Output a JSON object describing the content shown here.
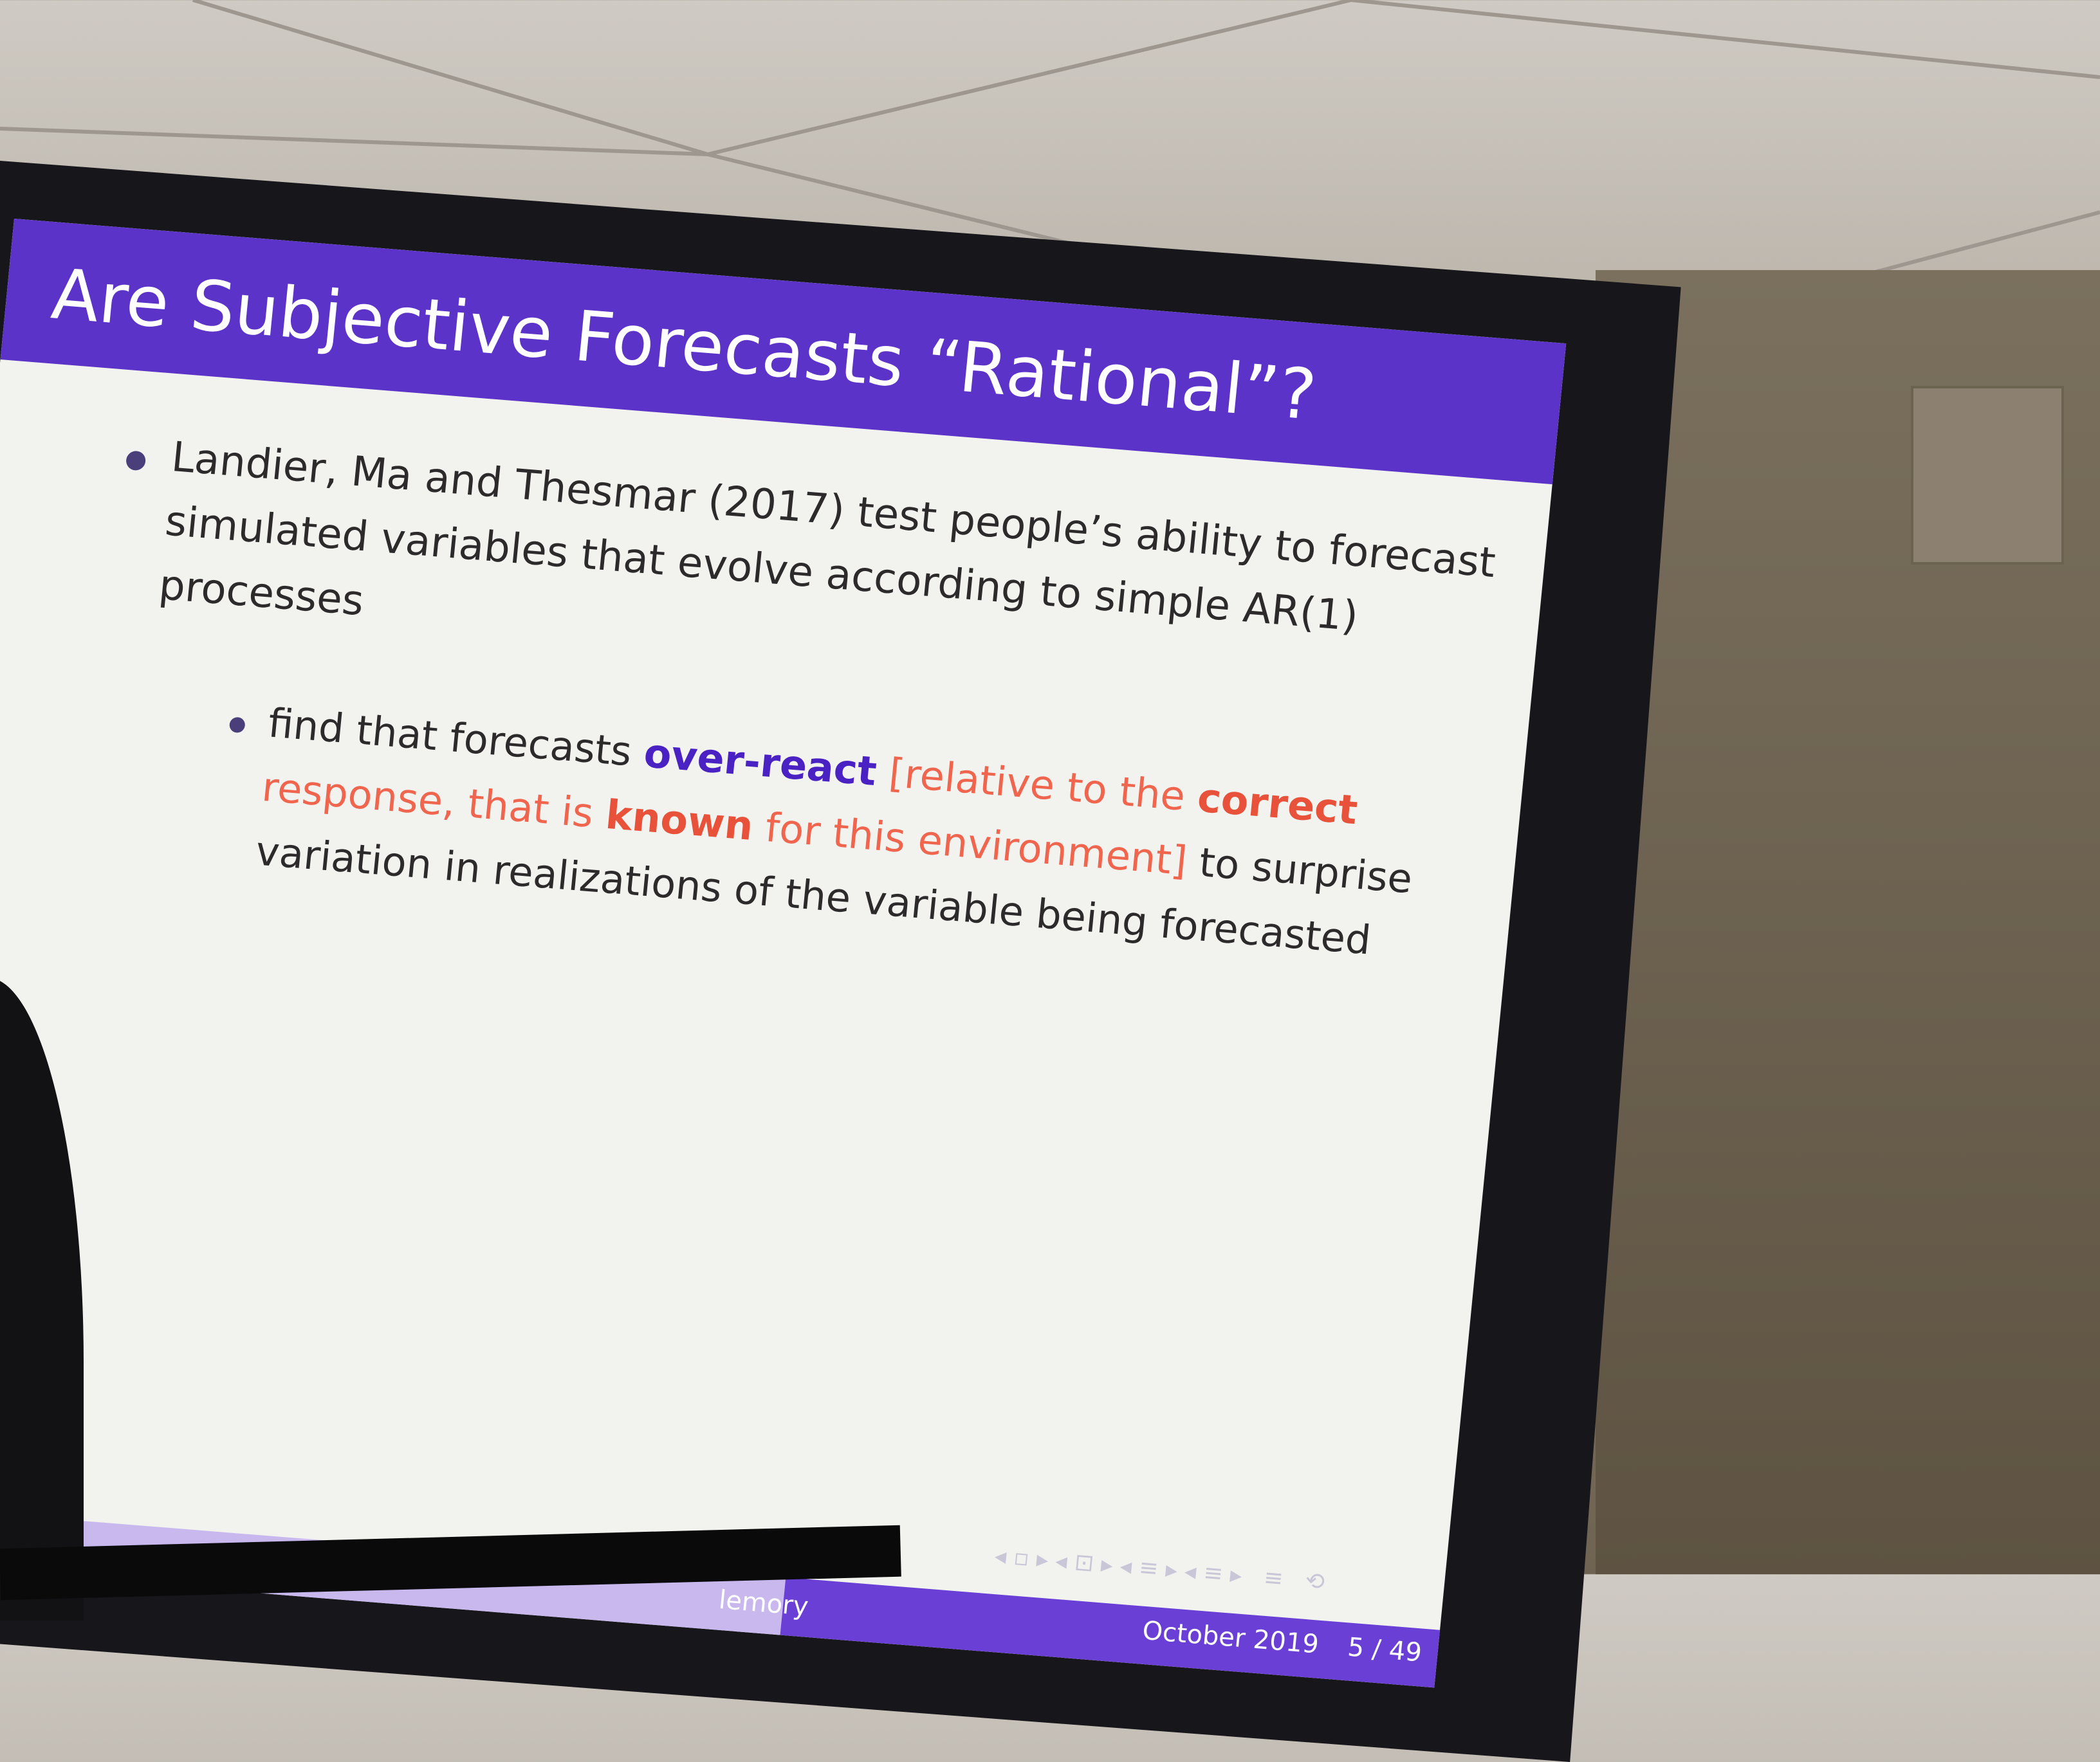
{
  "slide": {
    "title": "Are Subjective Forecasts “Rational”?",
    "bullet": "Landier, Ma and Thesmar (2017) test people’s ability to forecast simulated variables that evolve according to simple AR(1) processes",
    "sub_bullet": [
      "find that forecasts ",
      "over-react",
      " [relative to the ",
      "correct",
      " response, that is ",
      "known",
      " for this environment]",
      " to surprise variation in realizations of the variable being forecasted"
    ],
    "footer": {
      "left": "lemory",
      "date": "October 2019",
      "page": "5 / 49"
    }
  }
}
